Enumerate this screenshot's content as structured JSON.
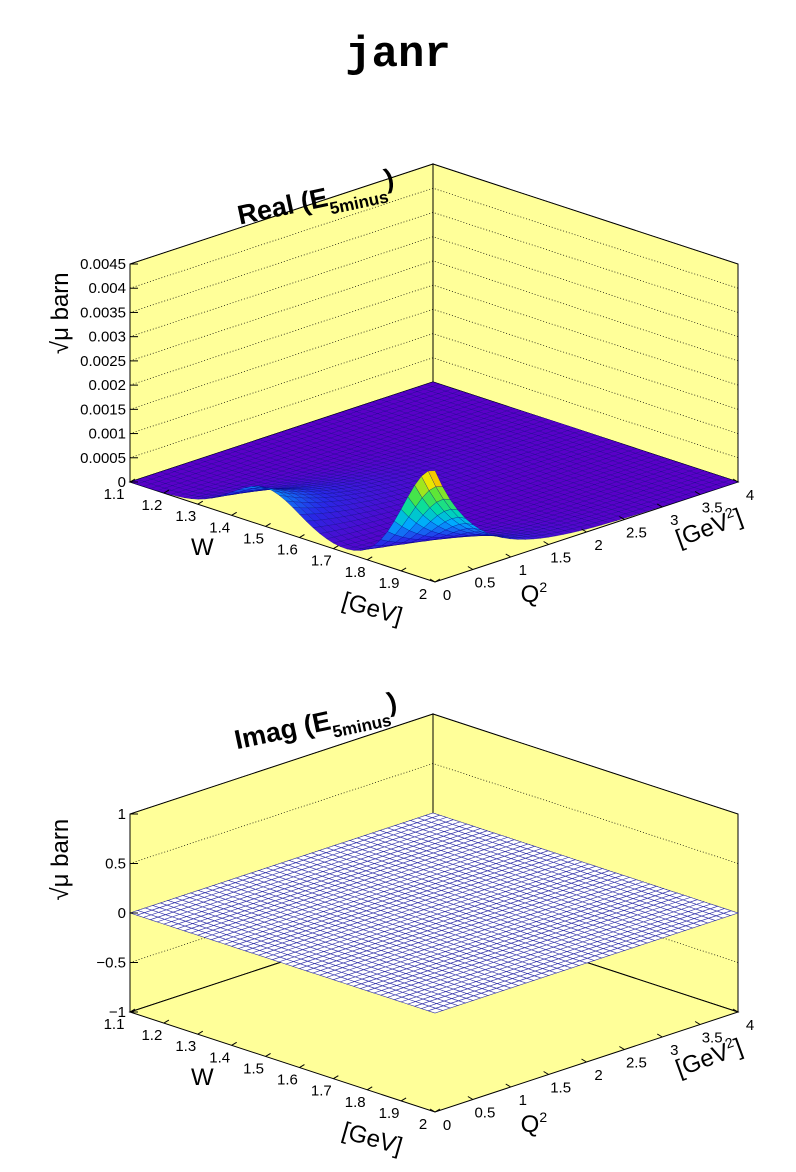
{
  "title": "janr",
  "colors": {
    "panel_fill": "#ffff99",
    "surface_line": "#000080",
    "imag_surface": "#3333aa"
  },
  "chart_data": [
    {
      "type": "surface",
      "title": "Real (E",
      "title_sub": "5minus",
      "title_close": ")",
      "xlabel": "W",
      "xunit": "[GeV]",
      "ylabel": "Q",
      "ylabel_sup": "2",
      "yunit_pre": "[GeV",
      "yunit_sup": "2",
      "yunit_post": "]",
      "zlabel": "μ barn",
      "zlabel_prefix": "√",
      "xlim": [
        1.1,
        2.0
      ],
      "ylim": [
        0,
        4
      ],
      "zlim": [
        0,
        0.0045
      ],
      "x_ticks": [
        "1.1",
        "1.2",
        "1.3",
        "1.4",
        "1.5",
        "1.6",
        "1.7",
        "1.8",
        "1.9",
        "2"
      ],
      "y_ticks": [
        "0",
        "0.5",
        "1",
        "1.5",
        "2",
        "2.5",
        "3",
        "3.5",
        "4"
      ],
      "z_ticks": [
        "0",
        "0.0005",
        "0.001",
        "0.0015",
        "0.002",
        "0.0025",
        "0.003",
        "0.0035",
        "0.004",
        "0.0045"
      ],
      "grid": true,
      "features": [
        {
          "description": "sharp peak",
          "W": 2.0,
          "Q2": 0.0,
          "value": 0.0023
        },
        {
          "description": "broad bump",
          "W": 1.5,
          "Q2": 0.0,
          "value": 0.0008
        }
      ]
    },
    {
      "type": "surface",
      "title": "Imag (E",
      "title_sub": "5minus",
      "title_close": ")",
      "xlabel": "W",
      "xunit": "[GeV]",
      "ylabel": "Q",
      "ylabel_sup": "2",
      "yunit_pre": "[GeV",
      "yunit_sup": "2",
      "yunit_post": "]",
      "zlabel": "μ barn",
      "zlabel_prefix": "√",
      "xlim": [
        1.1,
        2.0
      ],
      "ylim": [
        0,
        4
      ],
      "zlim": [
        -1,
        1
      ],
      "x_ticks": [
        "1.1",
        "1.2",
        "1.3",
        "1.4",
        "1.5",
        "1.6",
        "1.7",
        "1.8",
        "1.9",
        "2"
      ],
      "y_ticks": [
        "0",
        "0.5",
        "1",
        "1.5",
        "2",
        "2.5",
        "3",
        "3.5",
        "4"
      ],
      "z_ticks": [
        "−1",
        "−0.5",
        "0",
        "0.5",
        "1"
      ],
      "grid": true,
      "constant_value": 0
    }
  ]
}
